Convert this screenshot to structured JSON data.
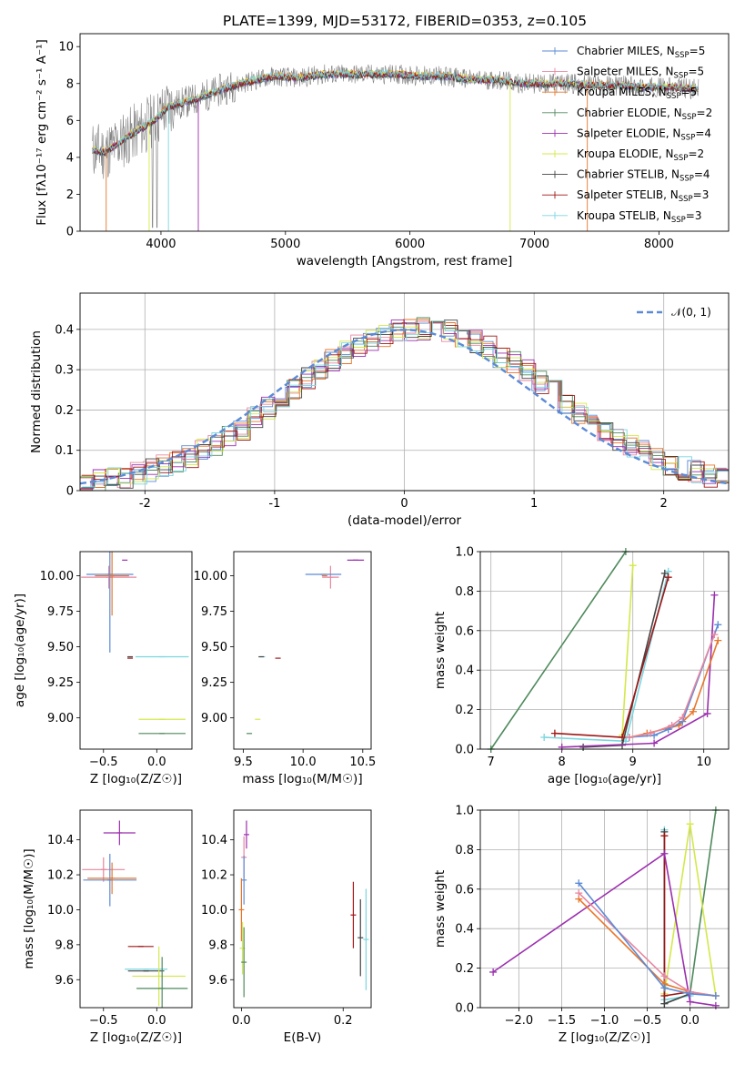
{
  "figure": {
    "title": "PLATE=1399, MJD=53172, FIBERID=0353, z=0.105"
  },
  "colors": {
    "chabrier_miles": "#5b8bd6",
    "salpeter_miles": "#e6869e",
    "kroupa_miles": "#e8762a",
    "chabrier_elodie": "#4e8a5c",
    "salpeter_elodie": "#9b2fae",
    "kroupa_elodie": "#d4e84a",
    "chabrier_stelib": "#444444",
    "salpeter_stelib": "#a01616",
    "kroupa_stelib": "#7ad6e0",
    "data": "#808080",
    "normal_curve": "#5b8bd6"
  },
  "chart_data": [
    {
      "id": "spectrum",
      "type": "line",
      "title": "PLATE=1399, MJD=53172, FIBERID=0353, z=0.105",
      "xlabel": "wavelength [Angstrom, rest frame]",
      "ylabel": "Flux [fλ10⁻¹⁷ erg cm⁻² s⁻¹ A⁻¹]",
      "xlim": [
        3350,
        8560
      ],
      "ylim": [
        0,
        10.7
      ],
      "xticks": [
        4000,
        5000,
        6000,
        7000,
        8000
      ],
      "yticks": [
        0,
        2,
        4,
        6,
        8,
        10
      ],
      "grid": false,
      "legend_position": "right",
      "continuum_x": [
        3450,
        3550,
        3650,
        3750,
        3850,
        3950,
        4050,
        4150,
        4300,
        4500,
        4700,
        4900,
        5100,
        5300,
        5500,
        5700,
        5900,
        6100,
        6300,
        6500,
        6700,
        6900,
        7100,
        7300,
        7500,
        7700,
        7900,
        8100,
        8300
      ],
      "continuum_y": [
        4.4,
        4.3,
        4.7,
        5.2,
        5.6,
        6.0,
        6.7,
        6.9,
        7.2,
        7.7,
        8.1,
        8.4,
        8.3,
        8.5,
        8.5,
        8.5,
        8.5,
        8.4,
        8.4,
        8.2,
        8.2,
        8.0,
        8.0,
        8.0,
        7.9,
        7.9,
        7.8,
        7.8,
        7.7
      ],
      "series": [
        {
          "name": "Chabrier MILES, N_SSP=5",
          "label_main": "Chabrier MILES, N",
          "label_sub": "SSP",
          "label_tail": "=5",
          "color": "#5b8bd6",
          "marker": "|"
        },
        {
          "name": "Salpeter MILES, N_SSP=5",
          "label_main": "Salpeter MILES, N",
          "label_sub": "SSP",
          "label_tail": "=5",
          "color": "#e6869e",
          "marker": "|"
        },
        {
          "name": "Kroupa MILES, N_SSP=5",
          "label_main": "Kroupa MILES, N",
          "label_sub": "SSP",
          "label_tail": "=5",
          "color": "#e8762a",
          "marker": "|"
        },
        {
          "name": "Chabrier ELODIE, N_SSP=2",
          "label_main": "Chabrier ELODIE, N",
          "label_sub": "SSP",
          "label_tail": "=2",
          "color": "#4e8a5c",
          "marker": "|"
        },
        {
          "name": "Salpeter ELODIE, N_SSP=4",
          "label_main": "Salpeter ELODIE, N",
          "label_sub": "SSP",
          "label_tail": "=4",
          "color": "#9b2fae",
          "marker": "|"
        },
        {
          "name": "Kroupa ELODIE, N_SSP=2",
          "label_main": "Kroupa ELODIE, N",
          "label_sub": "SSP",
          "label_tail": "=2",
          "color": "#d4e84a",
          "marker": "|"
        },
        {
          "name": "Chabrier STELIB, N_SSP=4",
          "label_main": "Chabrier STELIB, N",
          "label_sub": "SSP",
          "label_tail": "=4",
          "color": "#444444",
          "marker": "|"
        },
        {
          "name": "Salpeter STELIB, N_SSP=3",
          "label_main": "Salpeter STELIB, N",
          "label_sub": "SSP",
          "label_tail": "=3",
          "color": "#a01616",
          "marker": "|"
        },
        {
          "name": "Kroupa STELIB, N_SSP=3",
          "label_main": "Kroupa STELIB, N",
          "label_sub": "SSP",
          "label_tail": "=3",
          "color": "#7ad6e0",
          "marker": "|"
        }
      ]
    },
    {
      "id": "residuals",
      "type": "line",
      "xlabel": "(data-model)/error",
      "ylabel": "Normed distribution",
      "xlim": [
        -2.5,
        2.5
      ],
      "ylim": [
        0,
        0.49
      ],
      "xticks": [
        -2,
        -1,
        0,
        1,
        2
      ],
      "yticks": [
        0.0,
        0.1,
        0.2,
        0.3,
        0.4
      ],
      "grid": true,
      "legend_position": "top-right",
      "legend_label": "𝒩(0, 1)",
      "bin_width": 0.1,
      "base_hist": [
        0.02,
        0.025,
        0.03,
        0.035,
        0.04,
        0.05,
        0.06,
        0.07,
        0.085,
        0.1,
        0.115,
        0.135,
        0.155,
        0.18,
        0.205,
        0.23,
        0.255,
        0.28,
        0.3,
        0.325,
        0.345,
        0.36,
        0.375,
        0.385,
        0.395,
        0.4,
        0.4,
        0.4,
        0.395,
        0.385,
        0.37,
        0.355,
        0.335,
        0.315,
        0.295,
        0.27,
        0.245,
        0.22,
        0.195,
        0.17,
        0.15,
        0.13,
        0.11,
        0.095,
        0.08,
        0.065,
        0.055,
        0.045,
        0.035,
        0.03
      ]
    },
    {
      "id": "age_vs_Z",
      "type": "scatter",
      "xlabel": "Z [log₁₀(Z/Z☉)]",
      "ylabel": "age  [log₁₀(age/yr)]",
      "xlim": [
        -0.72,
        0.33
      ],
      "ylim": [
        8.78,
        10.17
      ],
      "xticks": [
        -0.5,
        0.0
      ],
      "yticks": [
        9.0,
        9.25,
        9.5,
        9.75,
        10.0
      ],
      "xtick_labels": [
        "−0.5",
        "0.0"
      ],
      "ytick_labels": [
        "9.00",
        "9.25",
        "9.50",
        "9.75",
        "10.00"
      ],
      "grid": false,
      "points": [
        {
          "c": "#7ad6e0",
          "x": 0.05,
          "y": 9.43,
          "ex": 0.25,
          "ey": 0.0
        },
        {
          "c": "#9b2fae",
          "x": -0.3,
          "y": 10.11,
          "ex": 0.0,
          "ey": 0.0
        },
        {
          "c": "#e6869e",
          "x": -0.45,
          "y": 9.99,
          "ex": 0.26,
          "ey": 0.08
        },
        {
          "c": "#5b8bd6",
          "x": -0.44,
          "y": 10.01,
          "ex": 0.22,
          "ey": 0.55
        },
        {
          "c": "#e8762a",
          "x": -0.42,
          "y": 10.0,
          "ex": 0.16,
          "ey": 0.28
        },
        {
          "c": "#444444",
          "x": -0.25,
          "y": 9.43,
          "ex": 0.0,
          "ey": 0.0
        },
        {
          "c": "#a01616",
          "x": -0.25,
          "y": 9.42,
          "ex": 0.0,
          "ey": 0.0
        },
        {
          "c": "#d4e84a",
          "x": 0.05,
          "y": 8.99,
          "ex": 0.22,
          "ey": 0.0
        },
        {
          "c": "#4e8a5c",
          "x": 0.05,
          "y": 8.89,
          "ex": 0.22,
          "ey": 0.0
        }
      ]
    },
    {
      "id": "age_vs_mass",
      "type": "scatter",
      "xlabel": "mass [log₁₀(M/M☉)]",
      "ylabel": "",
      "xlim": [
        9.42,
        10.57
      ],
      "ylim": [
        8.78,
        10.17
      ],
      "xticks": [
        9.5,
        10.0,
        10.5
      ],
      "yticks": [
        9.0,
        9.25,
        9.5,
        9.75,
        10.0
      ],
      "xtick_labels": [
        "9.5",
        "10.0",
        "10.5"
      ],
      "ytick_labels": [
        "9.00",
        "9.25",
        "9.50",
        "9.75",
        "10.00"
      ],
      "grid": false,
      "points": [
        {
          "c": "#7ad6e0",
          "x": 9.66,
          "y": 9.43,
          "ex": 0.0,
          "ey": 0.0
        },
        {
          "c": "#9b2fae",
          "x": 10.44,
          "y": 10.11,
          "ex": 0.07,
          "ey": 0.0
        },
        {
          "c": "#e6869e",
          "x": 10.23,
          "y": 9.99,
          "ex": 0.07,
          "ey": 0.08
        },
        {
          "c": "#5b8bd6",
          "x": 10.17,
          "y": 10.01,
          "ex": 0.15,
          "ey": 0.0
        },
        {
          "c": "#e8762a",
          "x": 10.18,
          "y": 10.0,
          "ex": 0.0,
          "ey": 0.0
        },
        {
          "c": "#444444",
          "x": 9.65,
          "y": 9.43,
          "ex": 0.0,
          "ey": 0.0
        },
        {
          "c": "#a01616",
          "x": 9.79,
          "y": 9.42,
          "ex": 0.0,
          "ey": 0.0
        },
        {
          "c": "#d4e84a",
          "x": 9.62,
          "y": 8.99,
          "ex": 0.0,
          "ey": 0.0
        },
        {
          "c": "#4e8a5c",
          "x": 9.55,
          "y": 8.89,
          "ex": 0.0,
          "ey": 0.0
        }
      ]
    },
    {
      "id": "massweight_vs_age",
      "type": "line",
      "xlabel": "age  [log₁₀(age/yr)]",
      "ylabel": "mass weight",
      "xlim": [
        6.85,
        10.35
      ],
      "ylim": [
        0,
        1.0
      ],
      "xticks": [
        7,
        8,
        9,
        10
      ],
      "yticks": [
        0.0,
        0.2,
        0.4,
        0.6,
        0.8,
        1.0
      ],
      "xtick_labels": [
        "7",
        "8",
        "9",
        "10"
      ],
      "ytick_labels": [
        "0.0",
        "0.2",
        "0.4",
        "0.6",
        "0.8",
        "1.0"
      ],
      "grid": true,
      "series": [
        {
          "c": "#4e8a5c",
          "x": [
            7.0,
            8.9
          ],
          "y": [
            0.0,
            1.0
          ]
        },
        {
          "c": "#d4e84a",
          "x": [
            8.85,
            9.0
          ],
          "y": [
            0.07,
            0.93
          ]
        },
        {
          "c": "#7ad6e0",
          "x": [
            7.75,
            8.9,
            9.5
          ],
          "y": [
            0.06,
            0.04,
            0.9
          ]
        },
        {
          "c": "#444444",
          "x": [
            8.3,
            8.85,
            9.45
          ],
          "y": [
            0.01,
            0.02,
            0.89
          ]
        },
        {
          "c": "#a01616",
          "x": [
            7.9,
            8.85,
            9.5
          ],
          "y": [
            0.08,
            0.06,
            0.87
          ]
        },
        {
          "c": "#9b2fae",
          "x": [
            8.0,
            9.3,
            10.05,
            10.15
          ],
          "y": [
            0.01,
            0.03,
            0.18,
            0.78
          ]
        },
        {
          "c": "#e8762a",
          "x": [
            8.95,
            9.2,
            9.65,
            9.85,
            10.2
          ],
          "y": [
            0.06,
            0.08,
            0.12,
            0.19,
            0.55
          ]
        },
        {
          "c": "#5b8bd6",
          "x": [
            8.95,
            9.3,
            9.5,
            9.7,
            10.2
          ],
          "y": [
            0.06,
            0.07,
            0.1,
            0.14,
            0.63
          ]
        },
        {
          "c": "#e6869e",
          "x": [
            8.95,
            9.25,
            9.55,
            9.7,
            10.15
          ],
          "y": [
            0.06,
            0.08,
            0.12,
            0.16,
            0.58
          ]
        }
      ]
    },
    {
      "id": "mass_vs_Z",
      "type": "scatter",
      "xlabel": "Z [log₁₀(Z/Z☉)]",
      "ylabel": "mass [log₁₀(M/M☉)]",
      "xlim": [
        -0.72,
        0.33
      ],
      "ylim": [
        9.44,
        10.57
      ],
      "xticks": [
        -0.5,
        0.0
      ],
      "yticks": [
        9.6,
        9.8,
        10.0,
        10.2,
        10.4
      ],
      "xtick_labels": [
        "−0.5",
        "0.0"
      ],
      "ytick_labels": [
        "9.6",
        "9.8",
        "10.0",
        "10.2",
        "10.4"
      ],
      "grid": false,
      "points": [
        {
          "c": "#7ad6e0",
          "x": -0.1,
          "y": 9.66,
          "ex": 0.2,
          "ey": 0.0
        },
        {
          "c": "#9b2fae",
          "x": -0.35,
          "y": 10.44,
          "ex": 0.15,
          "ey": 0.07
        },
        {
          "c": "#e6869e",
          "x": -0.5,
          "y": 10.23,
          "ex": 0.2,
          "ey": 0.07
        },
        {
          "c": "#5b8bd6",
          "x": -0.44,
          "y": 10.17,
          "ex": 0.25,
          "ey": 0.15
        },
        {
          "c": "#e8762a",
          "x": -0.42,
          "y": 10.18,
          "ex": 0.23,
          "ey": 0.09
        },
        {
          "c": "#444444",
          "x": -0.1,
          "y": 9.65,
          "ex": 0.17,
          "ey": 0.0
        },
        {
          "c": "#a01616",
          "x": -0.15,
          "y": 9.79,
          "ex": 0.12,
          "ey": 0.0
        },
        {
          "c": "#d4e84a",
          "x": 0.02,
          "y": 9.62,
          "ex": 0.25,
          "ey": 0.17
        },
        {
          "c": "#4e8a5c",
          "x": 0.05,
          "y": 9.55,
          "ex": 0.24,
          "ey": 0.18
        }
      ]
    },
    {
      "id": "EBV",
      "type": "scatter",
      "xlabel": "E(B-V)",
      "ylabel": "",
      "xlim": [
        -0.015,
        0.255
      ],
      "ylim": [
        9.44,
        10.57
      ],
      "xticks": [
        0.0,
        0.2
      ],
      "yticks": [
        9.6,
        9.8,
        10.0,
        10.2,
        10.4
      ],
      "xtick_labels": [
        "0.0",
        "0.2"
      ],
      "ytick_labels": [
        "9.6",
        "9.8",
        "10.0",
        "10.2",
        "10.4"
      ],
      "grid": false,
      "points": [
        {
          "c": "#7ad6e0",
          "x": 0.245,
          "y": 9.83,
          "ex": 0.0,
          "ey": 0.29
        },
        {
          "c": "#9b2fae",
          "x": 0.01,
          "y": 10.43,
          "ex": 0.0,
          "ey": 0.08
        },
        {
          "c": "#e6869e",
          "x": 0.005,
          "y": 10.3,
          "ex": 0.0,
          "ey": 0.12
        },
        {
          "c": "#5b8bd6",
          "x": 0.005,
          "y": 10.17,
          "ex": 0.0,
          "ey": 0.14
        },
        {
          "c": "#e8762a",
          "x": 0.0,
          "y": 10.0,
          "ex": 0.0,
          "ey": 0.18
        },
        {
          "c": "#444444",
          "x": 0.234,
          "y": 9.84,
          "ex": 0.0,
          "ey": 0.22
        },
        {
          "c": "#a01616",
          "x": 0.22,
          "y": 9.97,
          "ex": 0.0,
          "ey": 0.19
        },
        {
          "c": "#d4e84a",
          "x": 0.002,
          "y": 9.78,
          "ex": 0.0,
          "ey": 0.15
        },
        {
          "c": "#4e8a5c",
          "x": 0.005,
          "y": 9.7,
          "ex": 0.0,
          "ey": 0.2
        }
      ]
    },
    {
      "id": "massweight_vs_Z",
      "type": "line",
      "xlabel": "Z [log₁₀(Z/Z☉)]",
      "ylabel": "mass weight",
      "xlim": [
        -2.45,
        0.45
      ],
      "ylim": [
        0,
        1.0
      ],
      "xticks": [
        -2.0,
        -1.5,
        -1.0,
        -0.5,
        0.0
      ],
      "yticks": [
        0.0,
        0.2,
        0.4,
        0.6,
        0.8,
        1.0
      ],
      "xtick_labels": [
        "−2.0",
        "−1.5",
        "−1.0",
        "−0.5",
        "0.0"
      ],
      "ytick_labels": [
        "0.0",
        "0.2",
        "0.4",
        "0.6",
        "0.8",
        "1.0"
      ],
      "grid": true,
      "series": [
        {
          "c": "#4e8a5c",
          "x": [
            -0.3,
            0.0,
            0.3
          ],
          "y": [
            0.02,
            0.07,
            1.0
          ]
        },
        {
          "c": "#d4e84a",
          "x": [
            -0.3,
            0.0,
            0.3
          ],
          "y": [
            0.07,
            0.93,
            0.06
          ]
        },
        {
          "c": "#7ad6e0",
          "x": [
            -0.3,
            -0.3,
            0.0
          ],
          "y": [
            0.9,
            0.04,
            0.06
          ]
        },
        {
          "c": "#444444",
          "x": [
            -0.3,
            -0.3,
            0.0
          ],
          "y": [
            0.89,
            0.02,
            0.07
          ]
        },
        {
          "c": "#a01616",
          "x": [
            -0.3,
            -0.3,
            0.0
          ],
          "y": [
            0.87,
            0.06,
            0.08
          ]
        },
        {
          "c": "#9b2fae",
          "x": [
            -2.3,
            -0.3,
            0.0,
            0.3
          ],
          "y": [
            0.18,
            0.78,
            0.03,
            0.01
          ]
        },
        {
          "c": "#e8762a",
          "x": [
            -1.3,
            -0.3,
            0.0,
            0.3
          ],
          "y": [
            0.55,
            0.12,
            0.08,
            0.06
          ]
        },
        {
          "c": "#e6869e",
          "x": [
            -1.3,
            -0.3,
            0.0,
            0.3
          ],
          "y": [
            0.58,
            0.16,
            0.08,
            0.06
          ]
        },
        {
          "c": "#5b8bd6",
          "x": [
            -1.3,
            -0.3,
            0.0,
            0.3
          ],
          "y": [
            0.63,
            0.1,
            0.07,
            0.06
          ]
        }
      ]
    }
  ]
}
